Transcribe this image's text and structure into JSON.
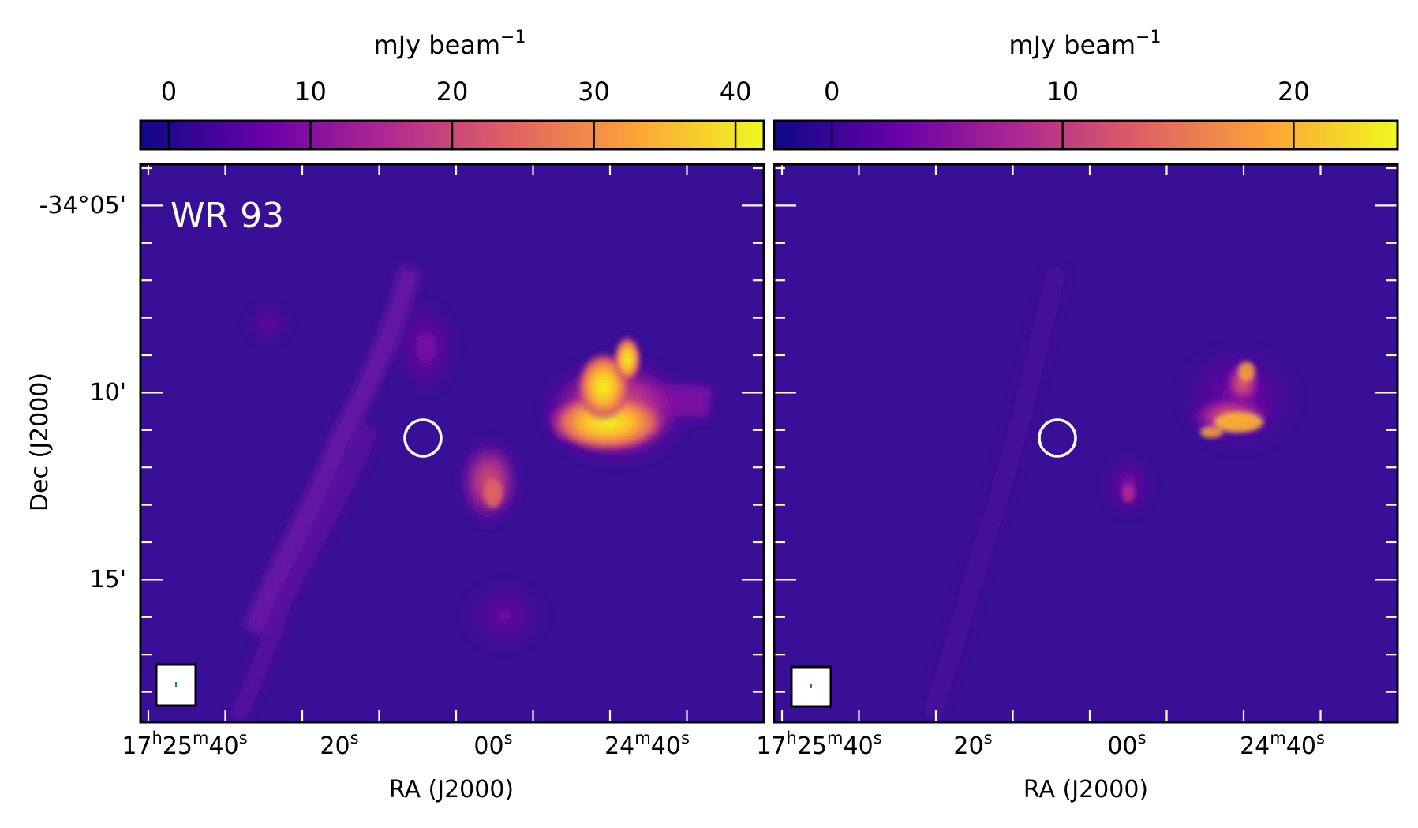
{
  "figure": {
    "left_panel": {
      "label": "WR 93",
      "colorbar": {
        "label": "mJy beam",
        "label_exponent": "−1",
        "ticks": [
          {
            "value": 0,
            "label": "0"
          },
          {
            "value": 10,
            "label": "10"
          },
          {
            "value": 20,
            "label": "20"
          },
          {
            "value": 30,
            "label": "30"
          },
          {
            "value": 40,
            "label": "40"
          }
        ],
        "range": [
          -2,
          42
        ]
      },
      "x_ticks": [
        {
          "h": "17",
          "hs": "h",
          "m": "25",
          "ms": "m",
          "s": "40",
          "ss": "s"
        },
        {
          "s": "20",
          "ss": "s"
        },
        {
          "s": "00",
          "ss": "s"
        },
        {
          "m": "24",
          "ms": "m",
          "s": "40",
          "ss": "s"
        }
      ],
      "xlabel": "RA (J2000)",
      "y_ticks": [
        "-34°05'",
        "10'",
        "15'"
      ],
      "ylabel": "Dec (J2000)"
    },
    "right_panel": {
      "colorbar": {
        "label": "mJy beam",
        "label_exponent": "−1",
        "ticks": [
          {
            "value": 0,
            "label": "0"
          },
          {
            "value": 10,
            "label": "10"
          },
          {
            "value": 20,
            "label": "20"
          }
        ],
        "range": [
          -2.5,
          24.5
        ]
      },
      "x_ticks": [
        {
          "h": "17",
          "hs": "h",
          "m": "25",
          "ms": "m",
          "s": "40",
          "ss": "s"
        },
        {
          "s": "20",
          "ss": "s"
        },
        {
          "s": "00",
          "ss": "s"
        },
        {
          "m": "24",
          "ms": "m",
          "s": "40",
          "ss": "s"
        }
      ],
      "xlabel": "RA (J2000)"
    },
    "colors": {
      "map_background": "#3a0f97",
      "circle_marker": "#ffffff",
      "colormap": [
        "#0d0887",
        "#6a00a8",
        "#b12a90",
        "#e16462",
        "#fca636",
        "#f0f921"
      ]
    }
  }
}
